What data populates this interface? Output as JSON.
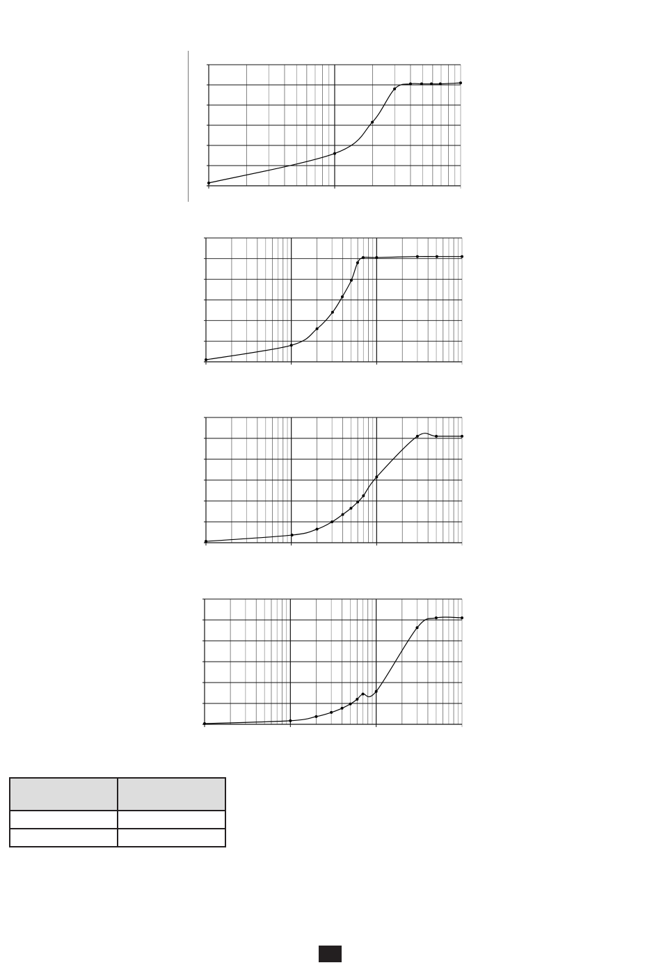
{
  "chart_data": [
    {
      "type": "line",
      "x_scale": "log",
      "xlim": [
        1,
        100
      ],
      "ylim": [
        0,
        120
      ],
      "y_grid_step": 20,
      "grid": true,
      "markers": true,
      "x": [
        1,
        10,
        19.9,
        29.9,
        40,
        49,
        58.6,
        69,
        100
      ],
      "y": [
        2.8,
        32,
        63,
        96,
        101,
        101,
        101,
        101,
        102
      ]
    },
    {
      "type": "line",
      "x_scale": "log",
      "xlim": [
        1,
        1000
      ],
      "ylim": [
        0,
        120
      ],
      "y_grid_step": 20,
      "grid": true,
      "markers": true,
      "x": [
        1,
        10,
        20,
        30.4,
        39.6,
        50.5,
        59.8,
        69.5,
        100,
        300,
        508,
        1000
      ],
      "y": [
        2,
        16,
        32,
        48,
        63,
        79,
        96,
        101,
        101,
        102,
        102,
        102
      ]
    },
    {
      "type": "line",
      "x_scale": "log",
      "xlim": [
        1,
        1000
      ],
      "ylim": [
        0,
        120
      ],
      "y_grid_step": 20,
      "grid": true,
      "markers": true,
      "x": [
        1,
        10.2,
        20,
        30,
        40,
        50,
        60,
        70,
        100,
        300,
        500,
        1000
      ],
      "y": [
        1.3,
        7.3,
        13,
        20,
        27,
        33,
        39,
        45,
        63,
        102,
        102,
        102
      ]
    },
    {
      "type": "line",
      "x_scale": "log",
      "xlim": [
        1,
        1000
      ],
      "ylim": [
        0,
        120
      ],
      "y_grid_step": 20,
      "grid": true,
      "markers": true,
      "x": [
        1,
        10,
        20,
        30,
        40,
        50,
        60,
        70,
        100,
        300,
        500,
        1000
      ],
      "y": [
        0.7,
        3.4,
        7.4,
        11.4,
        15.4,
        19.5,
        24,
        29,
        31.5,
        92.6,
        102,
        102
      ]
    }
  ],
  "table": {
    "header_color": "#dddddd",
    "rows": [
      [
        "",
        ""
      ],
      [
        "",
        ""
      ],
      [
        "",
        ""
      ]
    ]
  }
}
